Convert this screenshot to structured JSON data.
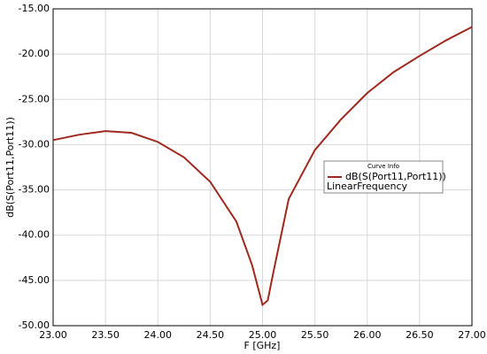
{
  "chart_data": {
    "type": "line",
    "x_label": "F [GHz]",
    "y_label": "dB(S(Port11,Port11))",
    "legend_title": "Curve Info",
    "legend_note": "LinearFrequency",
    "legend": "right",
    "x": [
      23.0,
      23.25,
      23.5,
      23.75,
      24.0,
      24.25,
      24.5,
      24.75,
      24.9,
      25.0,
      25.05,
      25.1,
      25.25,
      25.5,
      25.75,
      26.0,
      26.25,
      26.5,
      26.75,
      27.0
    ],
    "series": [
      {
        "name": "dB(S(Port11,Port11))",
        "color": "#a0281e",
        "values": [
          -29.5,
          -28.9,
          -28.5,
          -28.7,
          -29.7,
          -31.4,
          -34.1,
          -38.5,
          -43.3,
          -47.7,
          -47.2,
          -44.3,
          -36.0,
          -30.6,
          -27.2,
          -24.3,
          -22.0,
          -20.2,
          -18.5,
          -17.0
        ]
      }
    ],
    "xlim": [
      23,
      27
    ],
    "xticks": [
      {
        "value": 23,
        "label": "23.00"
      },
      {
        "value": 23.5,
        "label": "23.50"
      },
      {
        "value": 24,
        "label": "24.00"
      },
      {
        "value": 24.5,
        "label": "24.50"
      },
      {
        "value": 25,
        "label": "25.00"
      },
      {
        "value": 25.5,
        "label": "25.50"
      },
      {
        "value": 26,
        "label": "26.00"
      },
      {
        "value": 26.5,
        "label": "26.50"
      },
      {
        "value": 27,
        "label": "27.00"
      }
    ],
    "ylim": [
      -50,
      -15
    ],
    "yticks": [
      {
        "value": -15,
        "label": "-15.00"
      },
      {
        "value": -20,
        "label": "-20.00"
      },
      {
        "value": -25,
        "label": "-25.00"
      },
      {
        "value": -30,
        "label": "-30.00"
      },
      {
        "value": -35,
        "label": "-35.00"
      },
      {
        "value": -40,
        "label": "-40.00"
      },
      {
        "value": -45,
        "label": "-45.00"
      },
      {
        "value": -50,
        "label": "-50.00"
      }
    ],
    "grid": true
  }
}
